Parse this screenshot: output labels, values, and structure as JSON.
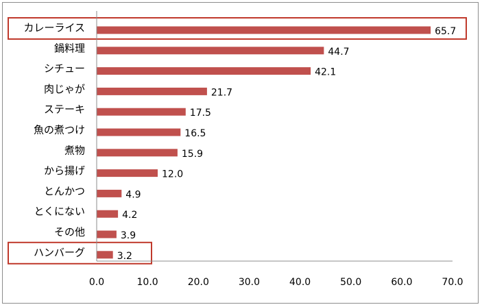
{
  "chart_data": {
    "type": "bar",
    "orientation": "horizontal",
    "categories": [
      "カレーライス",
      "鍋料理",
      "シチュー",
      "肉じゃが",
      "ステーキ",
      "魚の煮つけ",
      "煮物",
      "から揚げ",
      "とんかつ",
      "とくにない",
      "その他",
      "ハンバーグ"
    ],
    "values": [
      65.7,
      44.7,
      42.1,
      21.7,
      17.5,
      16.5,
      15.9,
      12.0,
      4.9,
      4.2,
      3.9,
      3.2
    ],
    "value_labels": [
      "65.7",
      "44.7",
      "42.1",
      "21.7",
      "17.5",
      "16.5",
      "15.9",
      "12.0",
      "4.9",
      "4.2",
      "3.9",
      "3.2"
    ],
    "highlighted_categories": [
      "カレーライス",
      "ハンバーグ"
    ],
    "xlim": [
      0,
      70
    ],
    "ticks": [
      0,
      10,
      20,
      30,
      40,
      50,
      60,
      70
    ],
    "tick_labels": [
      "0.0",
      "10.0",
      "20.0",
      "30.0",
      "40.0",
      "50.0",
      "60.0",
      "70.0"
    ],
    "grid": false,
    "colors": {
      "bar": "#c0504d",
      "highlight_box": "#c0392b",
      "axis": "#8c8c8c"
    }
  }
}
